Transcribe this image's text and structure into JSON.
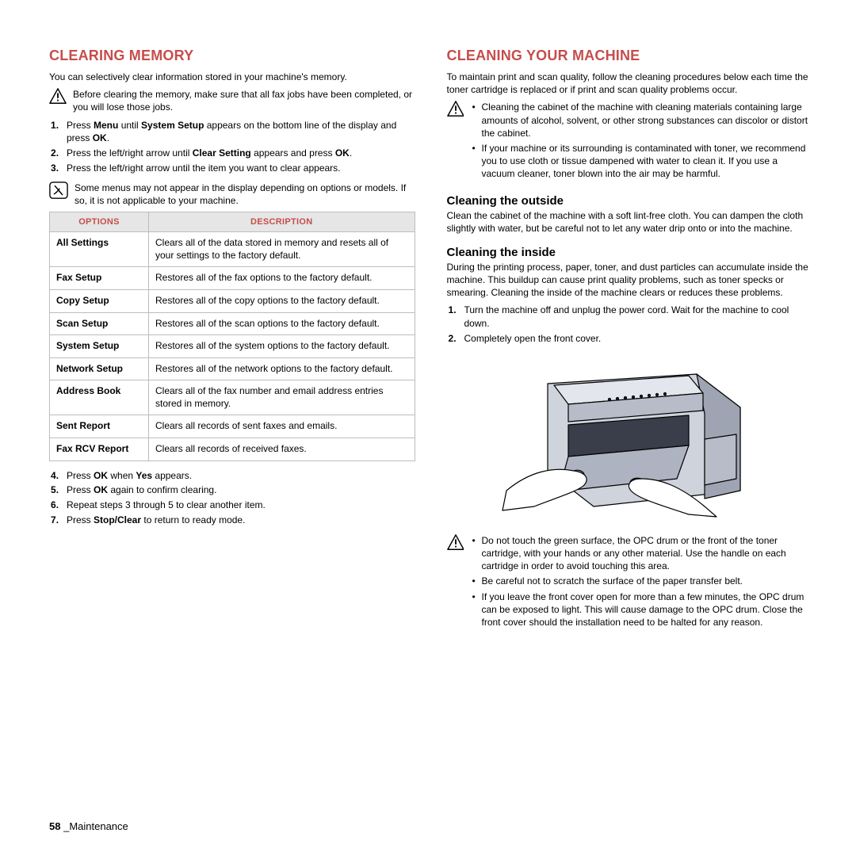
{
  "left": {
    "h1": "CLEARING MEMORY",
    "intro": "You can selectively clear information stored in your machine's memory.",
    "warn1": "Before clearing the memory, make sure that all fax jobs have been completed, or you will lose those jobs.",
    "steps_a": [
      "Press <b>Menu</b> until <b>System Setup</b> appears on the bottom line of the display and press <b>OK</b>.",
      "Press the left/right arrow until <b>Clear Setting</b> appears and press <b>OK</b>.",
      "Press the left/right arrow until the item you want to clear appears."
    ],
    "note": "Some menus may not appear in the display depending on options or models. If so, it is not applicable to your machine.",
    "table": {
      "head_opt": "OPTIONS",
      "head_desc": "DESCRIPTION",
      "rows": [
        {
          "o": "All Settings",
          "d": "Clears all of the data stored in memory and resets all of your settings to the factory default."
        },
        {
          "o": "Fax Setup",
          "d": "Restores all of the fax options to the factory default."
        },
        {
          "o": "Copy Setup",
          "d": "Restores all of the copy options to the factory default."
        },
        {
          "o": "Scan Setup",
          "d": "Restores all of the scan options to the factory default."
        },
        {
          "o": "System Setup",
          "d": "Restores all of the system options to the factory default."
        },
        {
          "o": "Network Setup",
          "d": "Restores all of the network options to the factory default."
        },
        {
          "o": "Address Book",
          "d": "Clears all of the fax number and email address entries stored in memory."
        },
        {
          "o": "Sent Report",
          "d": "Clears all records of sent faxes and emails."
        },
        {
          "o": "Fax RCV Report",
          "d": "Clears all records of received faxes."
        }
      ]
    },
    "steps_b": [
      "Press <b>OK</b> when <b>Yes</b> appears.",
      "Press <b>OK</b> again to confirm clearing.",
      "Repeat steps 3 through 5 to clear another item.",
      "Press <b>Stop/Clear</b> to return to ready mode."
    ]
  },
  "right": {
    "h1": "CLEANING YOUR MACHINE",
    "intro": "To maintain print and scan quality, follow the cleaning procedures below each time the toner cartridge is replaced or if print and scan quality problems occur.",
    "warn1": [
      "Cleaning the cabinet of the machine with cleaning materials containing large amounts of alcohol, solvent, or other strong substances can discolor or distort the cabinet.",
      "If your machine or its surrounding is contaminated with toner, we recommend you to use cloth or tissue dampened with water to clean it. If you use a vacuum cleaner, toner blown into the air may be harmful."
    ],
    "h2_outside": "Cleaning the outside",
    "outside_p": "Clean the cabinet of the machine with a soft lint-free cloth. You can dampen the cloth slightly with water, but be careful not to let any water drip onto or into the machine.",
    "h2_inside": "Cleaning the inside",
    "inside_p": "During the printing process, paper, toner, and dust particles can accumulate inside the machine. This buildup can cause print quality problems, such as toner specks or smearing. Cleaning the inside of the machine clears or reduces these problems.",
    "inside_steps": [
      "Turn the machine off and unplug the power cord. Wait for the machine to cool down.",
      "Completely open the front cover."
    ],
    "warn2": [
      "Do not touch the green surface, the OPC drum or the front of the toner cartridge, with your hands or any other material. Use the handle on each cartridge in order to avoid touching this area.",
      "Be careful not to scratch the surface of the paper transfer belt.",
      "If you leave the front cover open for more than a few minutes, the OPC drum can be exposed to light. This will cause damage to the OPC drum. Close the front cover should the installation need to be halted for any reason."
    ]
  },
  "footer_page": "58",
  "footer_label": "_Maintenance",
  "icon_colors": {
    "warn_stroke": "#000000",
    "warn_fill": "#ffffff",
    "note_stroke": "#000000",
    "note_fill": "#ffffff"
  }
}
